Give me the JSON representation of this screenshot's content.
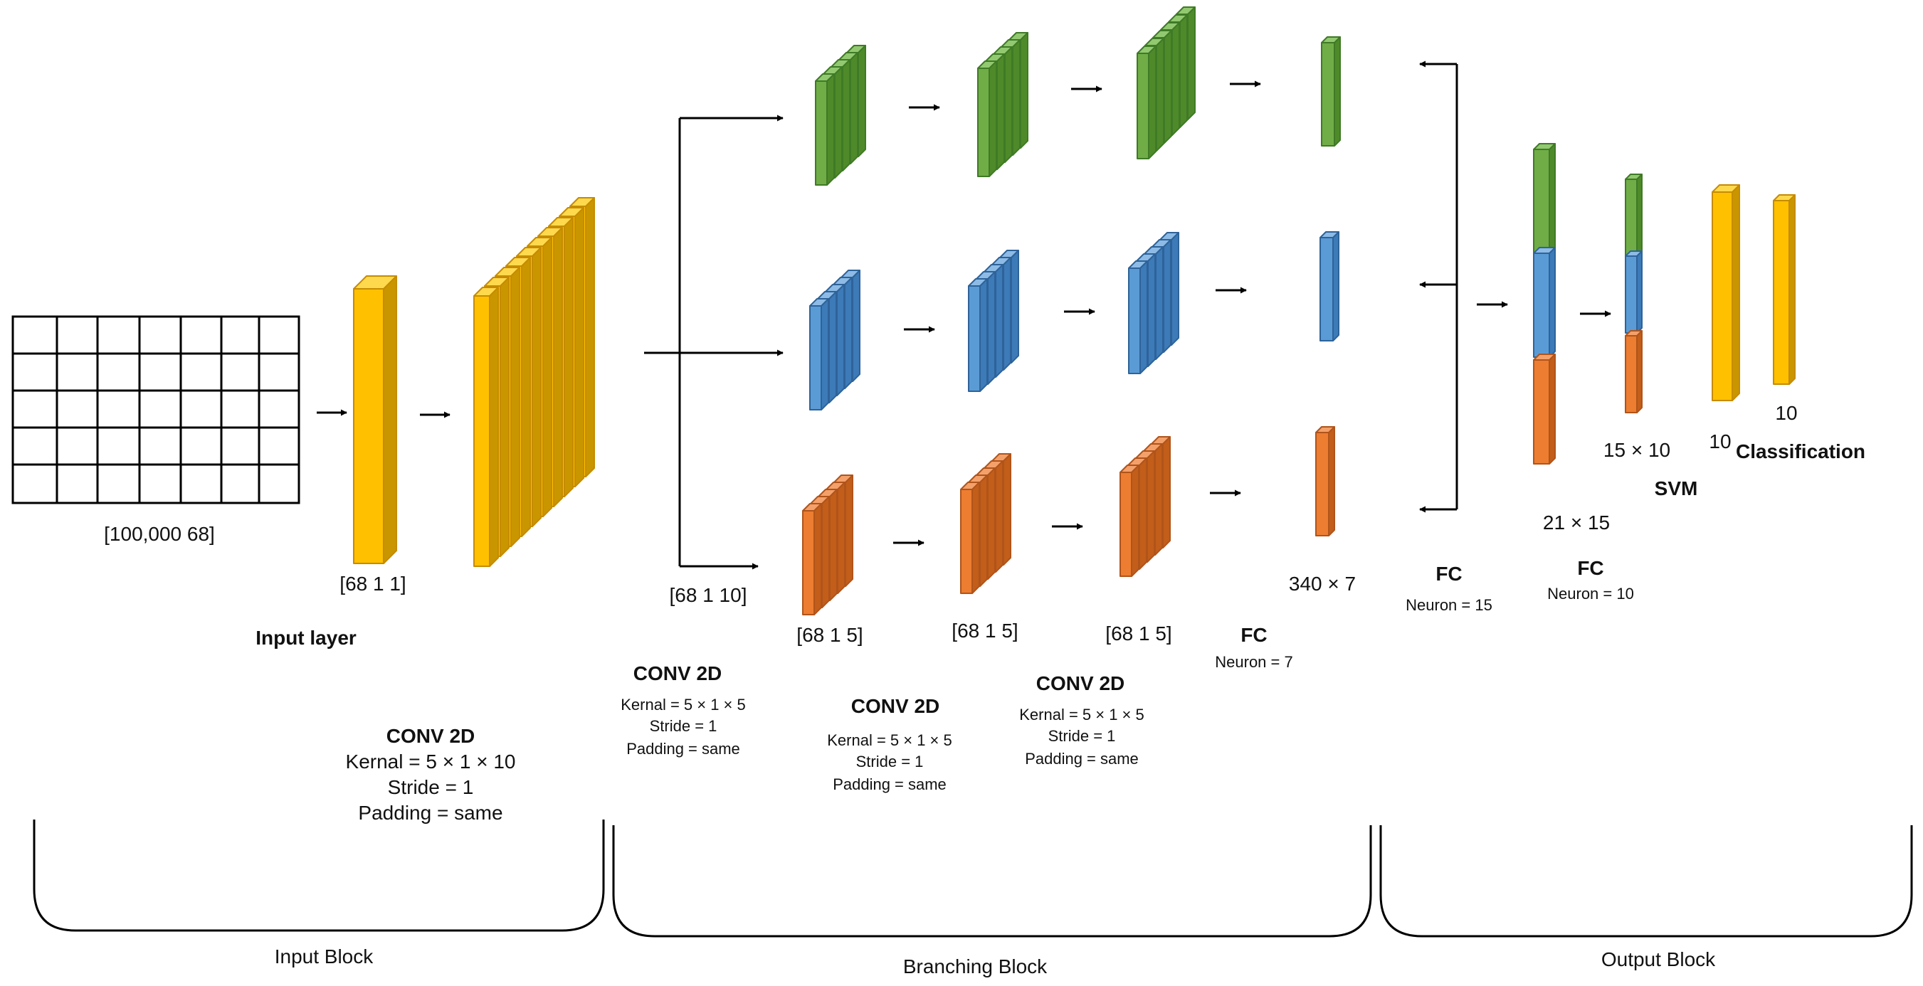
{
  "colors": {
    "yellow_front": "#FFC000",
    "yellow_side": "#C99600",
    "yellow_top": "#FFD94D",
    "yellow_stroke": "#C68B00",
    "green_front": "#70AD47",
    "green_side": "#4F8A2A",
    "green_top": "#92C970",
    "green_stroke": "#3F7A26",
    "blue_front": "#5B9BD5",
    "blue_side": "#3D7AB8",
    "blue_top": "#8DBBE6",
    "blue_stroke": "#2E6399",
    "orange_front": "#ED7D31",
    "orange_side": "#C25E1A",
    "orange_top": "#F4A06A",
    "orange_stroke": "#B0541A"
  },
  "input_block": {
    "matrix_label": "[100,000 68]",
    "input_layer_shape": "[68 1 1]",
    "input_layer_title": "Input layer",
    "conv_title": "CONV 2D",
    "conv_kernel": "Kernal = 5 × 1 × 10",
    "conv_stride": "Stride = 1",
    "conv_padding": "Padding = same",
    "block_label": "Input Block"
  },
  "branching_block": {
    "split_shape": "[68 1 10]",
    "shape_1": "[68 1 5]",
    "shape_2": "[68 1 5]",
    "shape_3": "[68 1 5]",
    "conv1_title": "CONV 2D",
    "conv1_kernel": "Kernal = 5 × 1 × 5",
    "conv1_stride": "Stride = 1",
    "conv1_padding": "Padding = same",
    "conv2_title": "CONV 2D",
    "conv2_kernel": "Kernal = 5 × 1 × 5",
    "conv2_stride": "Stride = 1",
    "conv2_padding": "Padding = same",
    "conv3_title": "CONV 2D",
    "conv3_kernel": "Kernal = 5 × 1 × 5",
    "conv3_stride": "Stride = 1",
    "conv3_padding": "Padding = same",
    "fc_shape": "340 × 7",
    "fc_title": "FC",
    "fc_neuron": "Neuron = 7",
    "block_label": "Branching Block"
  },
  "output_block": {
    "fc1_title": "FC",
    "fc1_neuron": "Neuron = 15",
    "concat_shape": "21 × 15",
    "fc2_title": "FC",
    "fc2_neuron": "Neuron = 10",
    "fc2_shape": "15 × 10",
    "svm_title": "SVM",
    "svm_shape": "10",
    "class_shape": "10",
    "class_title": "Classification",
    "block_label": "Output Block"
  }
}
